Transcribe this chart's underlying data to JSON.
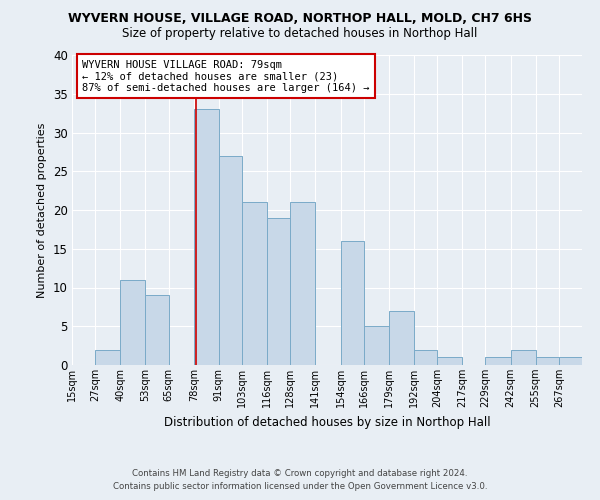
{
  "title": "WYVERN HOUSE, VILLAGE ROAD, NORTHOP HALL, MOLD, CH7 6HS",
  "subtitle": "Size of property relative to detached houses in Northop Hall",
  "xlabel": "Distribution of detached houses by size in Northop Hall",
  "ylabel": "Number of detached properties",
  "bin_labels": [
    "15sqm",
    "27sqm",
    "40sqm",
    "53sqm",
    "65sqm",
    "78sqm",
    "91sqm",
    "103sqm",
    "116sqm",
    "128sqm",
    "141sqm",
    "154sqm",
    "166sqm",
    "179sqm",
    "192sqm",
    "204sqm",
    "217sqm",
    "229sqm",
    "242sqm",
    "255sqm",
    "267sqm"
  ],
  "bin_edges": [
    15,
    27,
    40,
    53,
    65,
    78,
    91,
    103,
    116,
    128,
    141,
    154,
    166,
    179,
    192,
    204,
    217,
    229,
    242,
    255,
    267
  ],
  "bar_heights": [
    0,
    2,
    11,
    9,
    0,
    33,
    27,
    21,
    19,
    21,
    0,
    16,
    5,
    7,
    2,
    1,
    0,
    1,
    2,
    1,
    1
  ],
  "bar_color": "#c8d8e8",
  "bar_edge_color": "#7aaac8",
  "vline_x": 79,
  "vline_color": "#cc0000",
  "ylim": [
    0,
    40
  ],
  "yticks": [
    0,
    5,
    10,
    15,
    20,
    25,
    30,
    35,
    40
  ],
  "annotation_title": "WYVERN HOUSE VILLAGE ROAD: 79sqm",
  "annotation_line1": "← 12% of detached houses are smaller (23)",
  "annotation_line2": "87% of semi-detached houses are larger (164) →",
  "footer1": "Contains HM Land Registry data © Crown copyright and database right 2024.",
  "footer2": "Contains public sector information licensed under the Open Government Licence v3.0.",
  "bg_color": "#e8eef4",
  "plot_bg_color": "#e8eef4",
  "grid_color": "#ffffff"
}
